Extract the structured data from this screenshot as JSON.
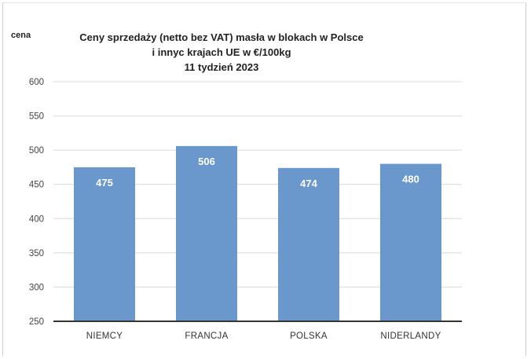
{
  "chart_data": {
    "type": "bar",
    "title_lines": [
      "Ceny sprzedaży (netto bez VAT) masła w blokach w Polsce",
      "i  innyc krajach UE w €/100kg",
      "11 tydzień 2023"
    ],
    "ylabel": "cena",
    "xlabel": "",
    "categories": [
      "NIEMCY",
      "FRANCJA",
      "POLSKA",
      "NIDERLANDY"
    ],
    "values": [
      475,
      506,
      474,
      480
    ],
    "data_labels": [
      "475",
      "506",
      "474",
      "480"
    ],
    "ylim": [
      250,
      600
    ],
    "yticks": [
      250,
      300,
      350,
      400,
      450,
      500,
      550,
      600
    ],
    "grid": true,
    "legend": "none",
    "bar_color": "#6a97cc",
    "axis_color": "#333333",
    "grid_color": "#d9d9d9"
  }
}
